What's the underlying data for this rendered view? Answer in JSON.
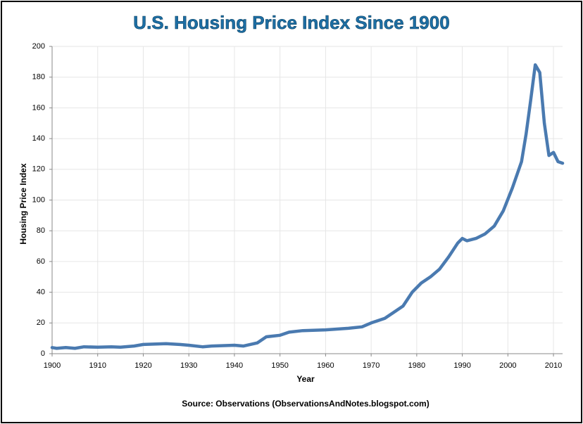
{
  "chart_data": {
    "type": "line",
    "title": "U.S. Housing Price Index Since 1900",
    "x_label": "Year",
    "y_label": "Housing Price Index",
    "source": "Source: Observations  (ObservationsAndNotes.blogspot.com)",
    "x": [
      1900,
      1901,
      1903,
      1905,
      1907,
      1910,
      1913,
      1915,
      1918,
      1920,
      1925,
      1928,
      1930,
      1933,
      1935,
      1940,
      1942,
      1945,
      1947,
      1950,
      1952,
      1955,
      1960,
      1965,
      1968,
      1970,
      1973,
      1975,
      1977,
      1979,
      1981,
      1983,
      1985,
      1987,
      1989,
      1990,
      1991,
      1993,
      1995,
      1997,
      1999,
      2001,
      2003,
      2004,
      2005,
      2006,
      2007,
      2008,
      2009,
      2010,
      2011,
      2012
    ],
    "series": [
      {
        "name": "Housing Price Index",
        "color": "#4a7ab0",
        "values": [
          4,
          3.5,
          4,
          3.5,
          4.5,
          4.2,
          4.5,
          4.2,
          5,
          6,
          6.5,
          6,
          5.5,
          4.5,
          5,
          5.5,
          5,
          7,
          11,
          12,
          14,
          15,
          15.5,
          16.5,
          17.5,
          20,
          23,
          27,
          31,
          40,
          46,
          50,
          55,
          63,
          72,
          75,
          73.5,
          75,
          78,
          83,
          93,
          108,
          125,
          143,
          165,
          188,
          183,
          150,
          129,
          131,
          125,
          124
        ]
      }
    ],
    "xlim": [
      1900,
      2012
    ],
    "xticks": [
      1900,
      1910,
      1920,
      1930,
      1940,
      1950,
      1960,
      1970,
      1980,
      1990,
      2000,
      2010
    ],
    "ylim": [
      0,
      200
    ],
    "yticks": [
      0,
      20,
      40,
      60,
      80,
      100,
      120,
      140,
      160,
      180,
      200
    ],
    "grid": true
  }
}
